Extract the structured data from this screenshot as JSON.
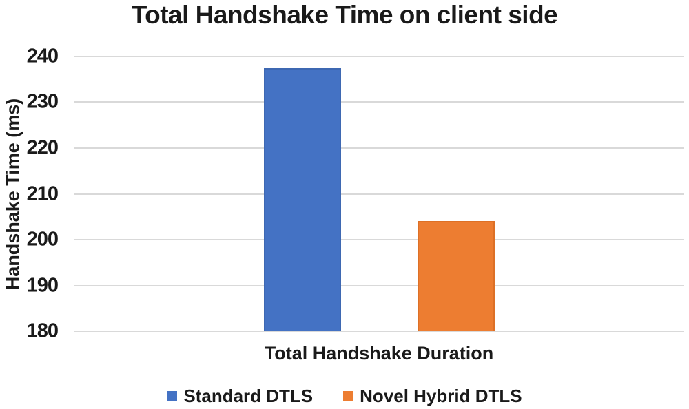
{
  "figure": {
    "background_color": "#ffffff",
    "text_color": "#1a1a1a"
  },
  "chart_data": {
    "type": "bar",
    "title": "Total Handshake Time on client side",
    "xlabel": "",
    "ylabel": "Handshake Time (ms)",
    "categories": [
      "Total Handshake Duration"
    ],
    "series": [
      {
        "name": "Standard DTLS",
        "values": [
          237.5
        ],
        "color": "#4472c4",
        "border_color": "#3e68b2"
      },
      {
        "name": "Novel Hybrid DTLS",
        "values": [
          204
        ],
        "color": "#ed7d31",
        "border_color": "#dd7026"
      }
    ],
    "ylim": [
      180,
      240
    ],
    "yticks": [
      240,
      230,
      220,
      210,
      200,
      190,
      180
    ],
    "ytick_step": 10,
    "grid": "horizontal",
    "gridline_color": "#d9d9d9",
    "legend_position": "bottom"
  }
}
